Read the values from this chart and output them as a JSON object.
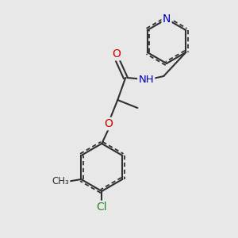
{
  "bg_color": "#e8e8e8",
  "bond_color": "#303030",
  "bond_lw": 1.5,
  "font_size_atom": 9,
  "colors": {
    "C": "#303030",
    "N": "#0000bb",
    "O": "#cc0000",
    "Cl": "#228B22",
    "H": "#303030"
  }
}
